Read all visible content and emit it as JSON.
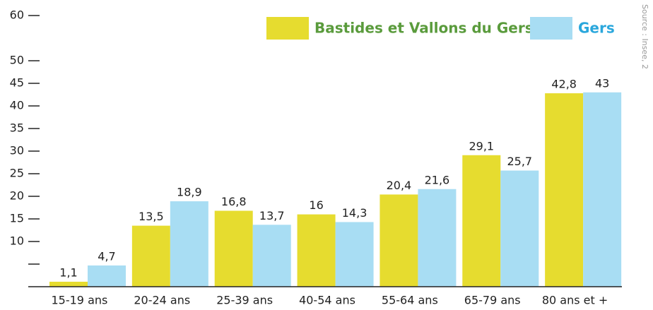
{
  "chart_data": {
    "type": "bar",
    "categories": [
      "15-19 ans",
      "20-24 ans",
      "25-39 ans",
      "40-54 ans",
      "55-64 ans",
      "65-79 ans",
      "80 ans et +"
    ],
    "series": [
      {
        "name": "Bastides et Vallons du Gers",
        "color": "#e6dc2f",
        "values": [
          1.1,
          13.5,
          16.8,
          16,
          20.4,
          29.1,
          42.8
        ],
        "value_labels": [
          "1,1",
          "13,5",
          "16,8",
          "16",
          "20,4",
          "29,1",
          "42,8"
        ]
      },
      {
        "name": "Gers",
        "color": "#a8ddf3",
        "values": [
          4.7,
          18.9,
          13.7,
          14.3,
          21.6,
          25.7,
          43
        ],
        "value_labels": [
          "4,7",
          "18,9",
          "13,7",
          "14,3",
          "21,6",
          "25,7",
          "43"
        ]
      }
    ],
    "ylim": [
      0,
      60
    ],
    "yticks": [
      10,
      15,
      20,
      25,
      30,
      35,
      40,
      45,
      50,
      60
    ],
    "minor_yticks": [
      5
    ],
    "legend": "top-right",
    "legend_text_colors": [
      "#5a9b3c",
      "#2aa7dc"
    ],
    "source": "Source : Insee, 2"
  }
}
